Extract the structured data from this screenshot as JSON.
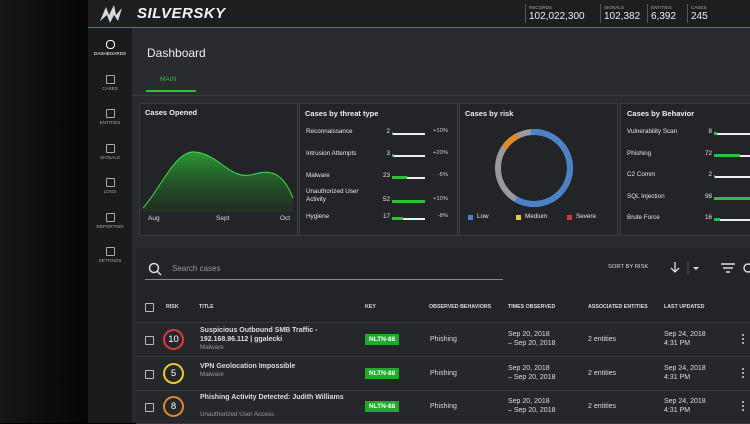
{
  "brand": "SILVERSKY",
  "stats": [
    {
      "label": "RECORDS",
      "value": "102,022,300"
    },
    {
      "label": "SIGNALS",
      "value": "102,382"
    },
    {
      "label": "ENTITIES",
      "value": "6,392"
    },
    {
      "label": "CASES",
      "value": "245"
    }
  ],
  "nav": [
    "DASHBOARDS",
    "CASES",
    "ENTITIES",
    "SIGNALS",
    "LOGS",
    "REPORTING",
    "SETTINGS"
  ],
  "page_title": "Dashboard",
  "tab": "MAIN",
  "cards": {
    "cases_opened": {
      "title": "Cases Opened",
      "x_labels": [
        "Aug",
        "Sept",
        "Oct"
      ]
    },
    "threat_type": {
      "title": "Cases by threat type",
      "rows": [
        {
          "name": "Reconnaissance",
          "count": 2,
          "change": "+10%"
        },
        {
          "name": "Intrusion Attempts",
          "count": 3,
          "change": "+20%"
        },
        {
          "name": "Malware",
          "count": 23,
          "change": "-5%"
        },
        {
          "name": "Unauthorized User Activity",
          "count": 52,
          "change": "+10%"
        },
        {
          "name": "Hygiene",
          "count": 17,
          "change": "-8%"
        }
      ]
    },
    "risk": {
      "title": "Cases by risk",
      "legend": [
        "Low",
        "Medium",
        "Severe"
      ]
    },
    "behavior": {
      "title": "Cases by Behavior",
      "rows": [
        {
          "name": "Vulnerability Scan",
          "count": 8
        },
        {
          "name": "Phishing",
          "count": 72
        },
        {
          "name": "C2 Comm",
          "count": 2
        },
        {
          "name": "SQL Injection",
          "count": 98
        },
        {
          "name": "Brute Force",
          "count": 16
        }
      ]
    }
  },
  "search": {
    "placeholder": "Search cases",
    "sort": "SORT BY RISK"
  },
  "table": {
    "columns": [
      "RISK",
      "TITLE",
      "KEY",
      "OBSERVED BEHAVIORS",
      "TIMES OBSERVED",
      "ASSOCIATED ENTITIES",
      "LAST UPDATED"
    ],
    "rows": [
      {
        "risk": 10,
        "title": "Suspicious Outbound SMB Traffic - 192.168.96.112 | ggalecki",
        "subtitle": "Malware",
        "key": "NLTN-88",
        "behavior": "Phishing",
        "times": [
          "Sep 20, 2018",
          "– Sep 20, 2018"
        ],
        "entities": "2 entities",
        "updated": [
          "Sep 24, 2018",
          "4:31 PM"
        ]
      },
      {
        "risk": 5,
        "title": "VPN Geolocation Impossible",
        "subtitle": "Malware",
        "key": "NLTN-88",
        "behavior": "Phishing",
        "times": [
          "Sep 20, 2018",
          "– Sep 20, 2018"
        ],
        "entities": "2 entities",
        "updated": [
          "Sep 24, 2018",
          "4:31 PM"
        ]
      },
      {
        "risk": 8,
        "title": "Phishing Activity Detected: Judith Williams",
        "subtitle": "Unauthorized User Access",
        "key": "NLTN-88",
        "behavior": "Phishing",
        "times": [
          "Sep 20, 2018",
          "– Sep 20, 2018"
        ],
        "entities": "2 entities",
        "updated": [
          "Sep 24, 2018",
          "4:31 PM"
        ]
      }
    ]
  }
}
